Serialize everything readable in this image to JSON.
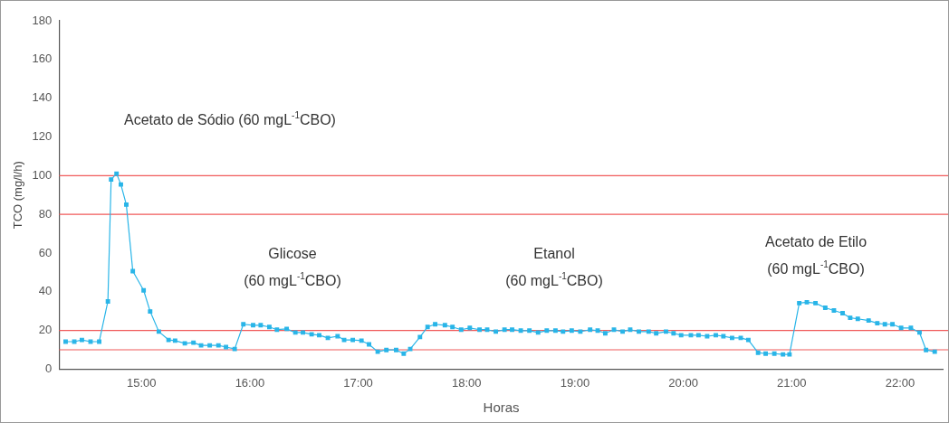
{
  "chart_data": {
    "type": "line",
    "xlabel": "Horas",
    "ylabel": "TCO (mg/l/h)",
    "xlim": [
      14.24,
      22.4
    ],
    "ylim": [
      0,
      180
    ],
    "xticks": [
      {
        "value": 15,
        "label": "15:00"
      },
      {
        "value": 16,
        "label": "16:00"
      },
      {
        "value": 17,
        "label": "17:00"
      },
      {
        "value": 18,
        "label": "18:00"
      },
      {
        "value": 19,
        "label": "19:00"
      },
      {
        "value": 20,
        "label": "20:00"
      },
      {
        "value": 21,
        "label": "21:00"
      },
      {
        "value": 22,
        "label": "22:00"
      }
    ],
    "yticks": [
      0,
      20,
      40,
      60,
      80,
      100,
      120,
      140,
      160,
      180
    ],
    "legend": false,
    "marker": "square",
    "line_style": "solid",
    "series": [
      {
        "color": "#29b5e8",
        "x": [
          14.3,
          14.38,
          14.45,
          14.53,
          14.61,
          14.69,
          14.72,
          14.77,
          14.81,
          14.86,
          14.92,
          15.02,
          15.08,
          15.16,
          15.25,
          15.31,
          15.4,
          15.48,
          15.55,
          15.63,
          15.71,
          15.78,
          15.86,
          15.94,
          16.03,
          16.1,
          16.18,
          16.25,
          16.34,
          16.42,
          16.49,
          16.57,
          16.64,
          16.72,
          16.81,
          16.87,
          16.95,
          17.03,
          17.1,
          17.18,
          17.26,
          17.35,
          17.42,
          17.48,
          17.57,
          17.64,
          17.71,
          17.8,
          17.87,
          17.95,
          18.03,
          18.12,
          18.19,
          18.27,
          18.35,
          18.42,
          18.5,
          18.58,
          18.66,
          18.74,
          18.82,
          18.89,
          18.97,
          19.05,
          19.14,
          19.21,
          19.28,
          19.36,
          19.44,
          19.51,
          19.59,
          19.68,
          19.75,
          19.84,
          19.91,
          19.98,
          20.07,
          20.14,
          20.22,
          20.3,
          20.37,
          20.45,
          20.53,
          20.6,
          20.69,
          20.76,
          20.84,
          20.92,
          20.98,
          21.07,
          21.14,
          21.22,
          21.31,
          21.39,
          21.47,
          21.54,
          21.61,
          21.71,
          21.79,
          21.86,
          21.93,
          22.01,
          22.1,
          22.18,
          22.24,
          22.32
        ],
        "values": [
          14.2,
          14.2,
          15.1,
          14.2,
          14.2,
          35,
          98,
          101,
          95.4,
          85,
          50.6,
          40.7,
          29.8,
          19.4,
          15.1,
          14.7,
          13.3,
          13.7,
          12.3,
          12.3,
          12.3,
          11.4,
          10.4,
          23.2,
          22.7,
          22.7,
          21.8,
          20.4,
          20.8,
          18.9,
          18.9,
          18,
          17.5,
          16.1,
          17,
          15.1,
          15.1,
          14.7,
          12.8,
          9,
          9.9,
          9.9,
          8,
          10.4,
          16.6,
          21.8,
          23.2,
          22.7,
          21.8,
          20.4,
          21.3,
          20.4,
          20.4,
          19.4,
          20.4,
          20.4,
          19.9,
          19.9,
          18.9,
          19.9,
          19.9,
          19.4,
          19.9,
          19.4,
          20.4,
          19.9,
          18.5,
          20.4,
          19.4,
          20.4,
          19.4,
          19.4,
          18.5,
          19.4,
          18.5,
          17.5,
          17.5,
          17.5,
          17,
          17.5,
          17,
          16.1,
          16.1,
          15.1,
          8.5,
          8,
          8,
          7.6,
          7.6,
          34.1,
          34.6,
          34.1,
          31.7,
          30.3,
          28.9,
          26.5,
          26,
          25.1,
          23.7,
          23.2,
          23.2,
          21.3,
          21.3,
          18.9,
          9.9,
          9
        ]
      }
    ],
    "ref_lines": [
      {
        "axis": "y",
        "value": 100,
        "color": "#f05a5a"
      },
      {
        "axis": "y",
        "value": 80,
        "color": "#f05a5a"
      },
      {
        "axis": "y",
        "value": 20,
        "color": "#f05a5a"
      },
      {
        "axis": "y",
        "value": 10,
        "color": "#f05a5a"
      }
    ],
    "annotations": [
      "Acetato de Sódio (60 mgL$^{-1}$CBO)",
      "Glicose",
      "(60 mgL$^{-1}$CBO)",
      "Etanol",
      "(60 mgL$^{-1}$CBO)",
      "Acetato de Etilo",
      "(60 mgL$^{-1}$CBO)"
    ]
  }
}
